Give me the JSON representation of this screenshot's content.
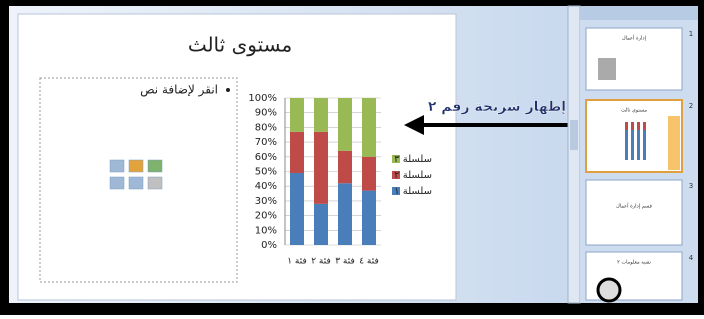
{
  "slide": {
    "title": "مستوى ثالث",
    "bullet": "انقر لإضافة نص"
  },
  "chart_data": {
    "type": "stacked-bar",
    "categories": [
      "فئة ١",
      "فئة ٢",
      "فئة ٣",
      "فئة ٤"
    ],
    "series": [
      {
        "name": "سلسلة ١",
        "color": "#4a7ebb",
        "values": [
          49,
          28,
          42,
          37
        ]
      },
      {
        "name": "سلسلة ٢",
        "color": "#be4b48",
        "values": [
          28,
          49,
          22,
          23
        ]
      },
      {
        "name": "سلسلة ٣",
        "color": "#98b954",
        "values": [
          23,
          23,
          36,
          40
        ]
      }
    ],
    "ylim": [
      0,
      100
    ],
    "yticks": [
      {
        "value": 0,
        "label": "0%"
      },
      {
        "value": 10,
        "label": "10%"
      },
      {
        "value": 20,
        "label": "20%"
      },
      {
        "value": 30,
        "label": "30%"
      },
      {
        "value": 40,
        "label": "40%"
      },
      {
        "value": 50,
        "label": "50%"
      },
      {
        "value": 60,
        "label": "60%"
      },
      {
        "value": 70,
        "label": "70%"
      },
      {
        "value": 80,
        "label": "80%"
      },
      {
        "value": 90,
        "label": "90%"
      },
      {
        "value": 100,
        "label": "100%"
      }
    ],
    "grid": true
  },
  "annotation": "إظهار شريحة رقم ٢",
  "thumbnails": [
    {
      "number": 1,
      "title": "إدارة أعمال"
    },
    {
      "number": 2,
      "title": "مستوى ثالث"
    },
    {
      "number": 3,
      "title": "قسم إدارة أعمال"
    },
    {
      "number": 4,
      "title": "تقنية معلومات ٢"
    }
  ]
}
